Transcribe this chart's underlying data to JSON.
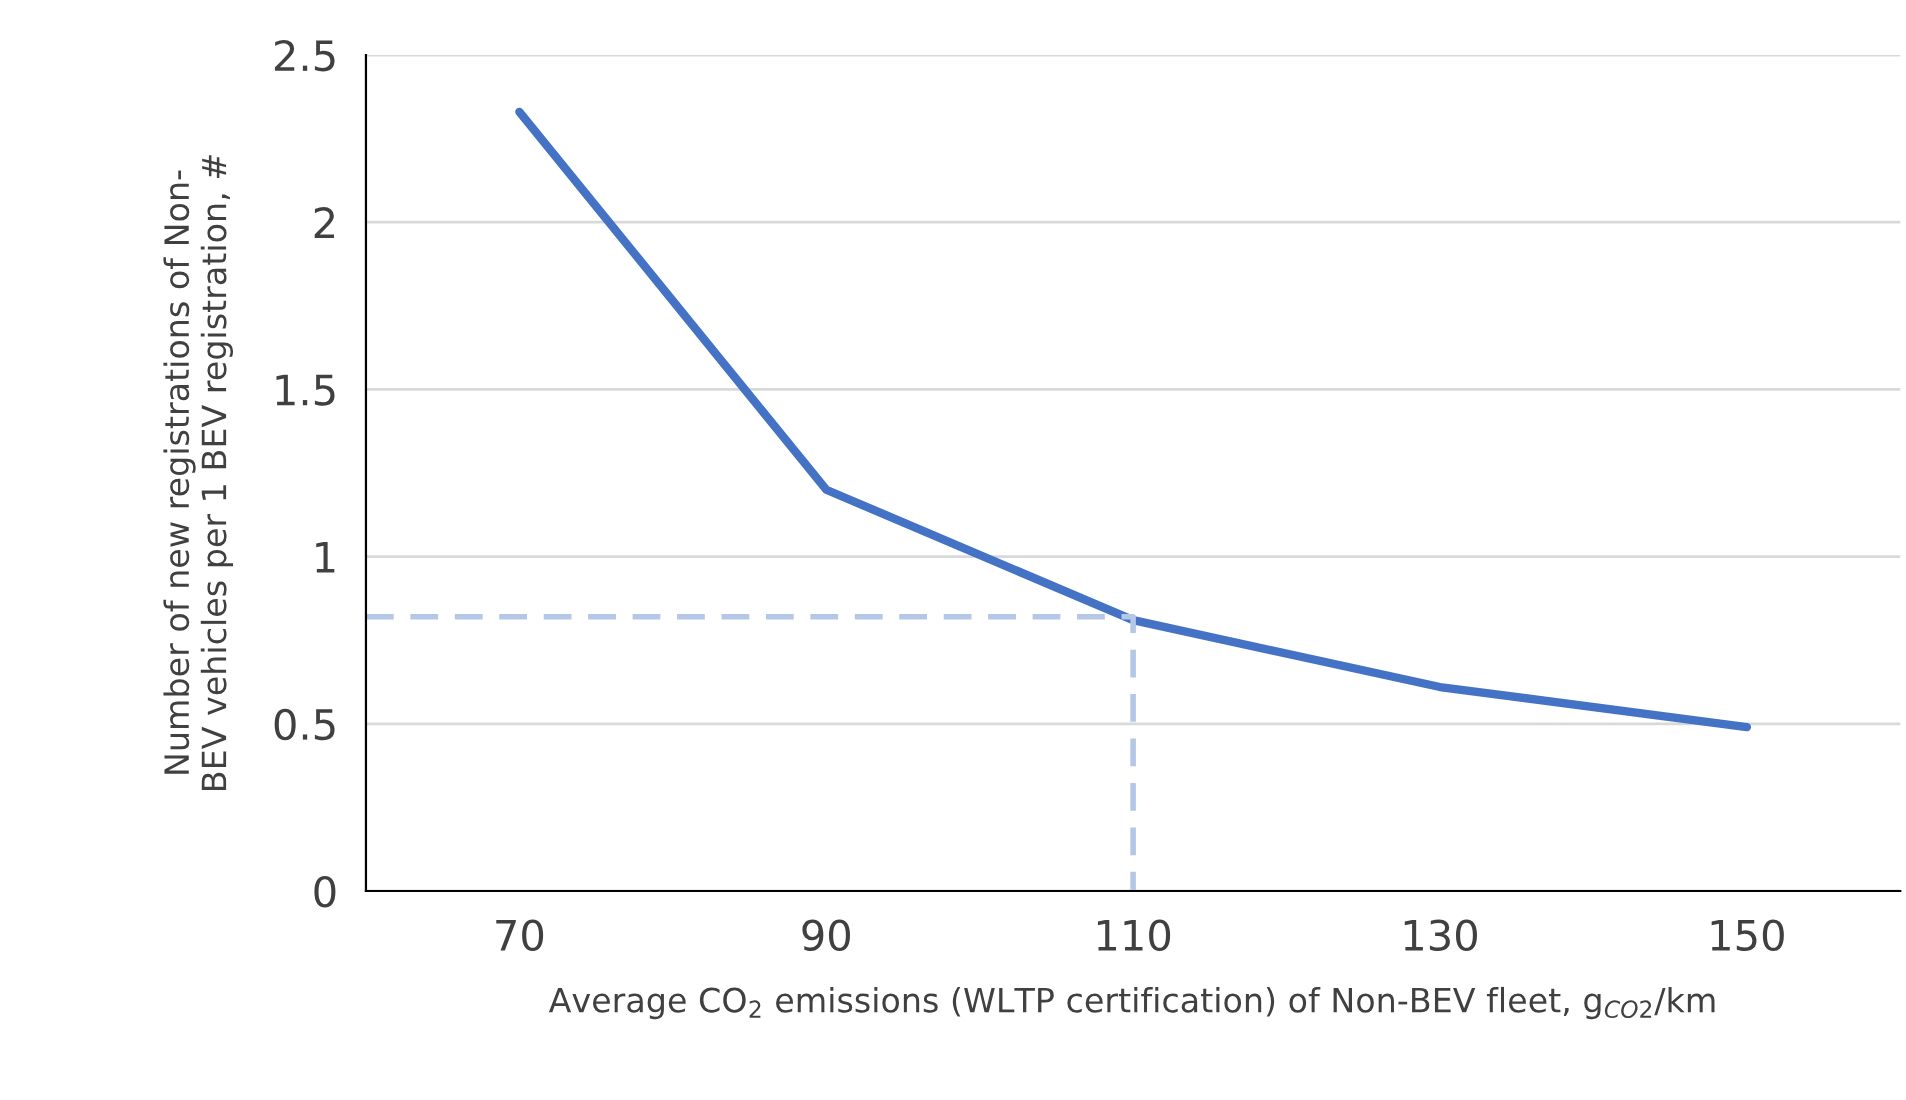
{
  "chart_data": {
    "type": "line",
    "xlabel": "Average CO$_{2}$ emissions (WLTP certification) of Non-BEV fleet, g$_{CO2}$/km",
    "ylabel": "Number of new registrations of Non-\nBEV vehicles per 1 BEV registration, #",
    "series": [
      {
        "x": [
          70,
          90,
          110,
          130,
          150
        ],
        "values": [
          2.33,
          1.2,
          0.81,
          0.61,
          0.49
        ],
        "color": "#4472c4",
        "line_style": "solid"
      },
      {
        "x": [
          60,
          110,
          110
        ],
        "values": [
          0.82,
          0.82,
          0
        ],
        "color": "#b4c7e7",
        "line_style": "dashed"
      }
    ],
    "xlim": [
      60,
      160
    ],
    "xticks": [
      70,
      90,
      110,
      130,
      150
    ],
    "ylim": [
      0,
      2.5
    ],
    "yticks": [
      0,
      0.5,
      1,
      1.5,
      2,
      2.5
    ],
    "grid": "y",
    "legend": false,
    "marker": "none"
  }
}
